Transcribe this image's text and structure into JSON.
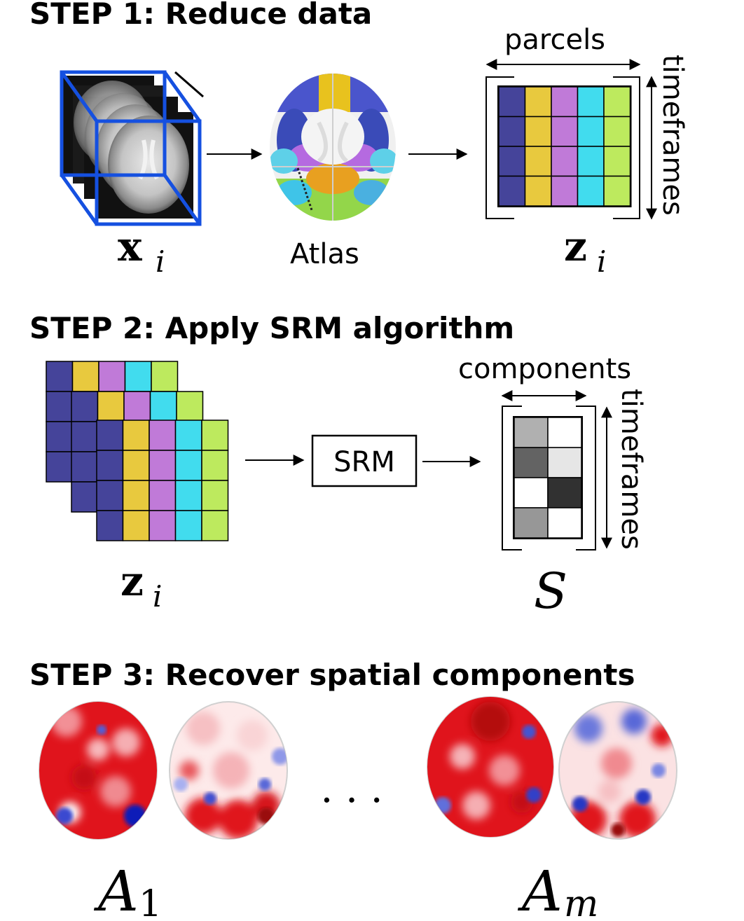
{
  "step1": {
    "heading": "STEP 1: Reduce data",
    "fmri_label": "x",
    "fmri_sub": "i",
    "atlas_label": "Atlas",
    "parcels_label": "parcels",
    "timeframes_label": "timeframes",
    "z_label": "z",
    "z_sub": "i"
  },
  "step2": {
    "heading": "STEP 2: Apply SRM algorithm",
    "z_label": "z",
    "z_sub": "i",
    "srm_label": "SRM",
    "components_label": "components",
    "timeframes_label": "timeframes",
    "s_label": "S"
  },
  "step3": {
    "heading": "STEP 3: Recover spatial components",
    "ellipsis": ". . .",
    "a1_label": "A",
    "a1_sub": "1",
    "am_label": "A",
    "am_sub": "m"
  },
  "colors": {
    "parcel_colors": [
      "#45449a",
      "#e8c93e",
      "#c07ad8",
      "#41dcee",
      "#bdea5e"
    ],
    "srm_box_stroke": "#000000",
    "cube_blue": "#1550e0",
    "positive": "#d8141a",
    "negative": "#2536c8"
  },
  "s_matrix_shades": [
    [
      "#b0b0b0",
      "#ffffff"
    ],
    [
      "#636363",
      "#e6e6e6"
    ],
    [
      "#ffffff",
      "#313131"
    ],
    [
      "#979797",
      "#ffffff"
    ]
  ]
}
